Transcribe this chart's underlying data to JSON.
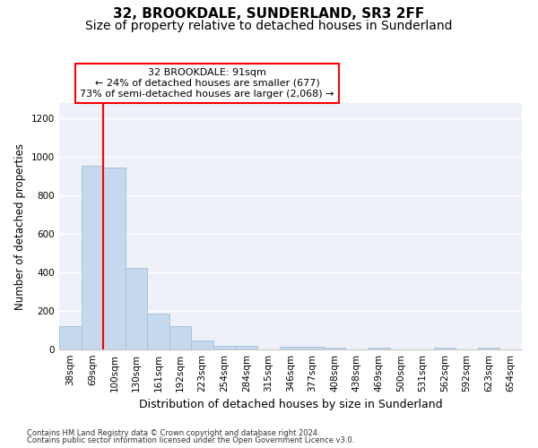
{
  "title": "32, BROOKDALE, SUNDERLAND, SR3 2FF",
  "subtitle": "Size of property relative to detached houses in Sunderland",
  "xlabel": "Distribution of detached houses by size in Sunderland",
  "ylabel": "Number of detached properties",
  "categories": [
    "38sqm",
    "69sqm",
    "100sqm",
    "130sqm",
    "161sqm",
    "192sqm",
    "223sqm",
    "254sqm",
    "284sqm",
    "315sqm",
    "346sqm",
    "377sqm",
    "408sqm",
    "438sqm",
    "469sqm",
    "500sqm",
    "531sqm",
    "562sqm",
    "592sqm",
    "623sqm",
    "654sqm"
  ],
  "values": [
    120,
    955,
    945,
    425,
    185,
    120,
    45,
    20,
    20,
    0,
    15,
    15,
    10,
    0,
    10,
    0,
    0,
    10,
    0,
    10,
    0
  ],
  "bar_color": "#c5d8ed",
  "bar_edge_color": "#a0bfd8",
  "annotation_text": "32 BROOKDALE: 91sqm\n← 24% of detached houses are smaller (677)\n73% of semi-detached houses are larger (2,068) →",
  "annotation_box_color": "white",
  "annotation_box_edge_color": "red",
  "vline_x": 1.5,
  "vline_color": "red",
  "ylim": [
    0,
    1280
  ],
  "yticks": [
    0,
    200,
    400,
    600,
    800,
    1000,
    1200
  ],
  "footer1": "Contains HM Land Registry data © Crown copyright and database right 2024.",
  "footer2": "Contains public sector information licensed under the Open Government Licence v3.0.",
  "title_fontsize": 11,
  "subtitle_fontsize": 10,
  "ylabel_fontsize": 8.5,
  "xlabel_fontsize": 9,
  "tick_fontsize": 7.5,
  "annotation_fontsize": 8,
  "footer_fontsize": 6,
  "background_color": "#eef2f8"
}
